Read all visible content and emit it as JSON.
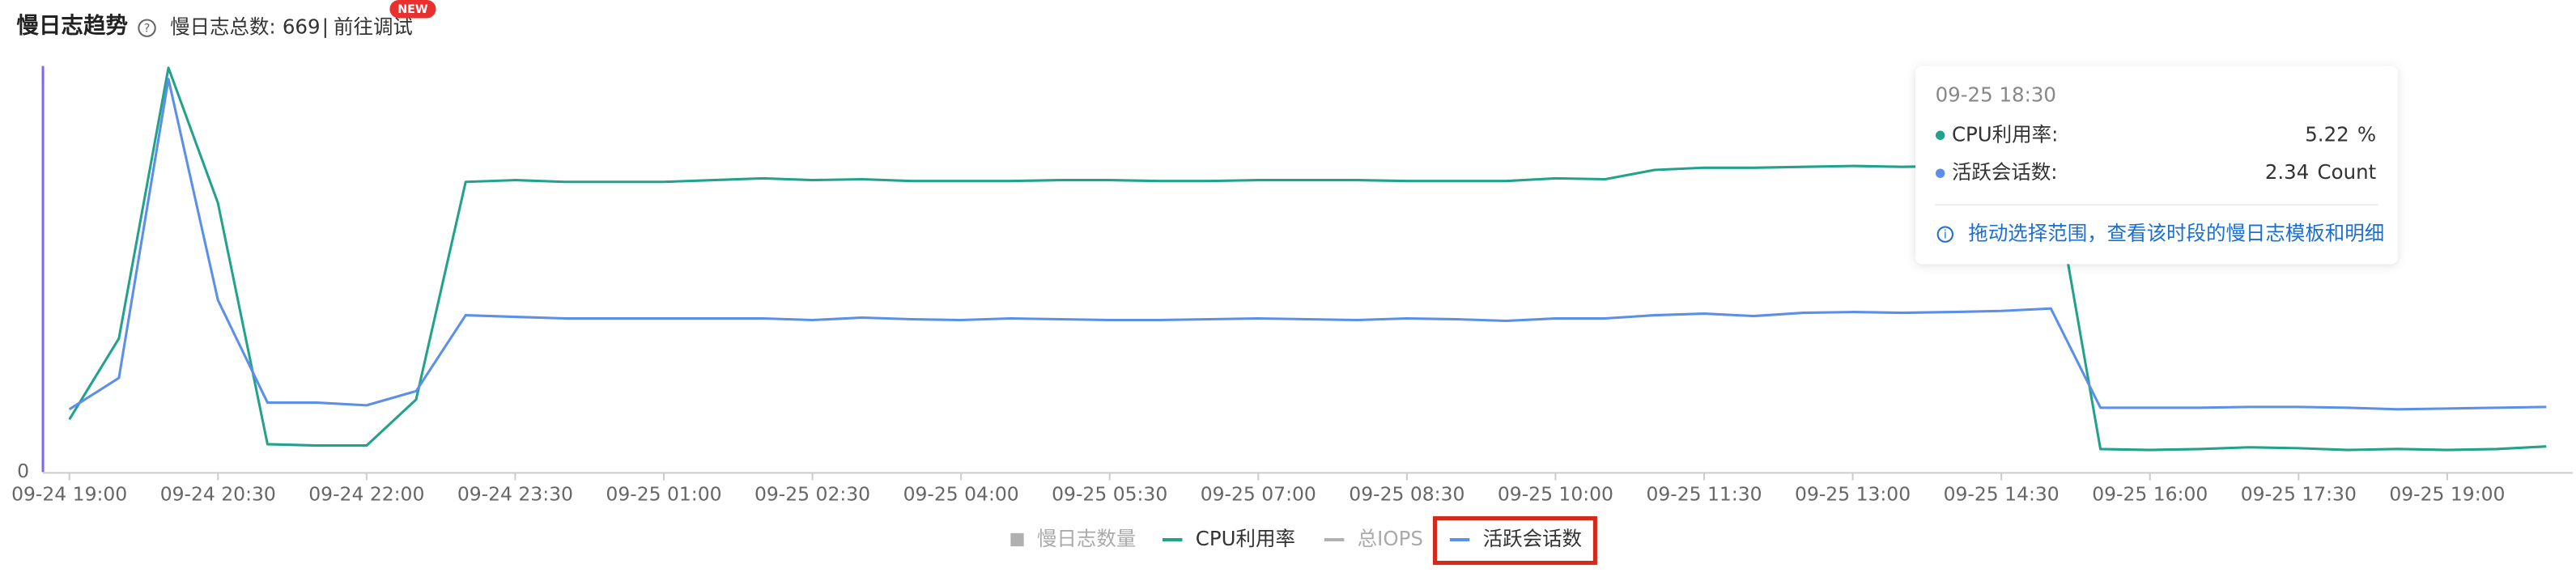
{
  "header": {
    "title": "慢日志趋势",
    "total_label": "慢日志总数:",
    "total": 669,
    "link": "前往调试",
    "badge": "NEW"
  },
  "chart_data": {
    "type": "line",
    "categories": [
      "09-24 19:00",
      null,
      null,
      "09-24 20:30",
      null,
      null,
      "09-24 22:00",
      null,
      null,
      "09-24 23:30",
      null,
      null,
      "09-25 01:00",
      null,
      null,
      "09-25 02:30",
      null,
      null,
      "09-25 04:00",
      null,
      null,
      "09-25 05:30",
      null,
      null,
      "09-25 07:00",
      null,
      null,
      "09-25 08:30",
      null,
      null,
      "09-25 10:00",
      null,
      null,
      "09-25 11:30",
      null,
      null,
      "09-25 13:00",
      null,
      null,
      "09-25 14:30",
      null,
      null,
      "09-25 16:00",
      null,
      null,
      "09-25 17:30",
      null,
      null,
      "09-25 19:00",
      null,
      null
    ],
    "series": [
      {
        "name": "慢日志数量",
        "color": "#b0b0b0",
        "marker": "square",
        "visible": false
      },
      {
        "name": "CPU利用率",
        "color": "#22a28a",
        "marker": "line",
        "values": [
          11.9,
          30.2,
          91.4,
          60.8,
          6.3,
          6.0,
          6.0,
          16.4,
          65.6,
          66.0,
          65.6,
          65.6,
          65.6,
          66.0,
          66.4,
          66.0,
          66.2,
          65.8,
          65.8,
          65.8,
          66.0,
          66.0,
          65.8,
          65.8,
          66.0,
          66.0,
          66.0,
          65.8,
          65.8,
          65.8,
          66.4,
          66.2,
          68.3,
          68.8,
          68.8,
          69.0,
          69.2,
          69.0,
          69.2,
          69.2,
          69.4,
          5.2,
          5.0,
          5.2,
          5.6,
          5.4,
          5.0,
          5.22,
          5.0,
          5.2,
          5.8
        ]
      },
      {
        "name": "总IOPS",
        "color": "#b0b0b0",
        "marker": "line",
        "visible": false
      },
      {
        "name": "活跃会话数",
        "color": "#5b8fe8",
        "marker": "line",
        "axis": "y2",
        "values": [
          2.34,
          3.51,
          14.66,
          6.41,
          2.59,
          2.59,
          2.49,
          3.02,
          5.85,
          5.79,
          5.73,
          5.73,
          5.73,
          5.73,
          5.73,
          5.67,
          5.76,
          5.7,
          5.67,
          5.73,
          5.7,
          5.67,
          5.67,
          5.7,
          5.73,
          5.7,
          5.67,
          5.73,
          5.7,
          5.64,
          5.73,
          5.73,
          5.85,
          5.91,
          5.82,
          5.94,
          5.97,
          5.94,
          5.97,
          6.01,
          6.1,
          2.4,
          2.4,
          2.4,
          2.43,
          2.43,
          2.4,
          2.34,
          2.37,
          2.4,
          2.43
        ]
      }
    ],
    "ylim": [
      0,
      100
    ],
    "yticks": [
      0
    ],
    "y2lim": [
      0,
      16.5
    ],
    "grid": false,
    "legend": "bottom",
    "tooltip": {
      "x": "09-25 18:30",
      "rows": [
        {
          "name": "CPU利用率:",
          "value": 5.22,
          "unit": "%"
        },
        {
          "name": "活跃会话数:",
          "value": 2.34,
          "unit": "Count"
        }
      ],
      "hint": "拖动选择范围，查看该时段的慢日志模板和明细"
    }
  }
}
